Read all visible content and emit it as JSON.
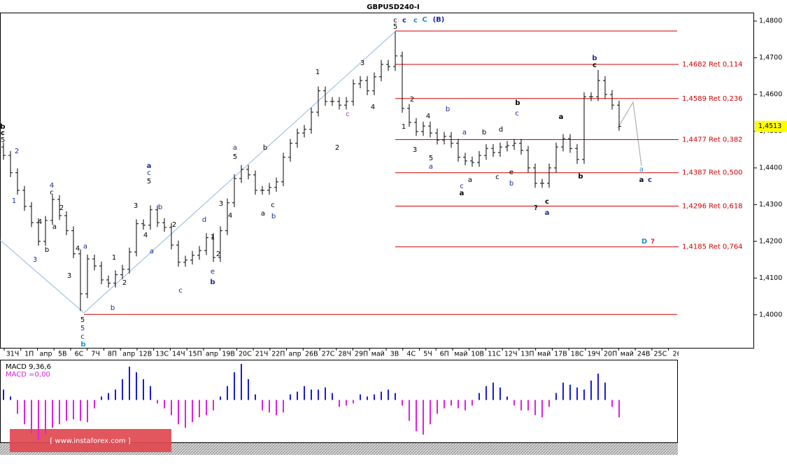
{
  "chart_data": {
    "type": "ohlc",
    "title": "GBPUSD240-I",
    "color": "#000000",
    "open": [
      1.4457,
      1.4434,
      1.4387,
      1.4339,
      1.4295,
      1.4251,
      1.42,
      1.4257,
      1.4314,
      1.427,
      1.4229,
      1.4166,
      1.4057,
      1.4152,
      1.4133,
      1.4095,
      1.4086,
      1.4109,
      1.4124,
      1.4171,
      1.4248,
      1.4244,
      1.4286,
      1.4251,
      1.4238,
      1.419,
      1.4143,
      1.4149,
      1.4162,
      1.4175,
      1.421,
      1.4156,
      1.4229,
      1.4305,
      1.4371,
      1.4396,
      1.4381,
      1.4339,
      1.4339,
      1.4347,
      1.4362,
      1.4429,
      1.4467,
      1.4495,
      1.4505,
      1.4552,
      1.461,
      1.4581,
      1.4581,
      1.4571,
      1.4581,
      1.4629,
      1.4638,
      1.461,
      1.4648,
      1.4682,
      1.4676,
      1.4705,
      1.4562,
      1.4524,
      1.4499,
      1.4514,
      1.4495,
      1.4476,
      1.4486,
      1.4467,
      1.4429,
      1.4419,
      1.4415,
      1.4434,
      1.4453,
      1.4442,
      1.4457,
      1.4461,
      1.4467,
      1.4448,
      1.44,
      1.4358,
      1.4358,
      1.44,
      1.4457,
      1.448,
      1.4453,
      1.4423,
      1.4594,
      1.4594,
      1.4638,
      1.46,
      1.4571
    ],
    "high": [
      1.4469,
      1.4446,
      1.4399,
      1.4351,
      1.4307,
      1.4263,
      1.4269,
      1.4326,
      1.4326,
      1.4282,
      1.4241,
      1.4178,
      1.4164,
      1.4164,
      1.4145,
      1.4107,
      1.4121,
      1.4136,
      1.4183,
      1.426,
      1.426,
      1.4298,
      1.4298,
      1.4263,
      1.425,
      1.4202,
      1.4161,
      1.4174,
      1.4187,
      1.4222,
      1.4222,
      1.4241,
      1.4317,
      1.4383,
      1.4408,
      1.4408,
      1.4393,
      1.4351,
      1.4359,
      1.4374,
      1.4441,
      1.4479,
      1.4507,
      1.4517,
      1.4564,
      1.4622,
      1.4622,
      1.4593,
      1.4593,
      1.4593,
      1.4641,
      1.465,
      1.465,
      1.466,
      1.4694,
      1.4694,
      1.4771,
      1.4717,
      1.4574,
      1.4536,
      1.4526,
      1.4526,
      1.4507,
      1.4498,
      1.4498,
      1.4479,
      1.4441,
      1.4431,
      1.4446,
      1.4465,
      1.4465,
      1.4469,
      1.4473,
      1.4479,
      1.4479,
      1.446,
      1.4412,
      1.437,
      1.4412,
      1.4469,
      1.4492,
      1.4492,
      1.4465,
      1.4606,
      1.4606,
      1.4667,
      1.465,
      1.4612,
      1.4583
    ],
    "low": [
      1.4422,
      1.4375,
      1.4327,
      1.4283,
      1.4239,
      1.4188,
      1.4188,
      1.4245,
      1.4258,
      1.4217,
      1.4154,
      1.401,
      1.4045,
      1.4121,
      1.4083,
      1.4074,
      1.4074,
      1.4097,
      1.4112,
      1.4159,
      1.4232,
      1.4232,
      1.4239,
      1.4226,
      1.4178,
      1.4131,
      1.4131,
      1.4137,
      1.415,
      1.4163,
      1.4144,
      1.4144,
      1.4217,
      1.4293,
      1.4359,
      1.4369,
      1.4327,
      1.4327,
      1.4327,
      1.4335,
      1.435,
      1.4417,
      1.4455,
      1.4483,
      1.4493,
      1.454,
      1.4569,
      1.4569,
      1.4559,
      1.4559,
      1.4569,
      1.4617,
      1.4598,
      1.4598,
      1.4636,
      1.4664,
      1.4664,
      1.455,
      1.4512,
      1.4487,
      1.4487,
      1.4483,
      1.4464,
      1.4464,
      1.4455,
      1.4417,
      1.4407,
      1.4403,
      1.4403,
      1.4422,
      1.443,
      1.443,
      1.4445,
      1.4449,
      1.4436,
      1.4388,
      1.4346,
      1.4346,
      1.4346,
      1.4388,
      1.4445,
      1.4441,
      1.4411,
      1.4411,
      1.4582,
      1.4582,
      1.4588,
      1.4559,
      1.4501
    ],
    "close": [
      1.4434,
      1.4387,
      1.4339,
      1.4295,
      1.4251,
      1.42,
      1.4257,
      1.4314,
      1.427,
      1.4229,
      1.4166,
      1.4057,
      1.4152,
      1.4133,
      1.4095,
      1.4086,
      1.4109,
      1.4124,
      1.4171,
      1.4248,
      1.4244,
      1.4286,
      1.4251,
      1.4238,
      1.419,
      1.4143,
      1.4149,
      1.4162,
      1.4175,
      1.421,
      1.4156,
      1.4229,
      1.4305,
      1.4371,
      1.4396,
      1.4381,
      1.4339,
      1.4339,
      1.4347,
      1.4362,
      1.4429,
      1.4467,
      1.4495,
      1.4505,
      1.4552,
      1.461,
      1.4581,
      1.4581,
      1.4571,
      1.4581,
      1.4629,
      1.4638,
      1.461,
      1.4648,
      1.4682,
      1.4676,
      1.4705,
      1.4562,
      1.4524,
      1.4499,
      1.4514,
      1.4495,
      1.4476,
      1.4486,
      1.4467,
      1.4429,
      1.4419,
      1.4415,
      1.4434,
      1.4453,
      1.4442,
      1.4457,
      1.4461,
      1.4467,
      1.4448,
      1.44,
      1.4358,
      1.4358,
      1.44,
      1.4457,
      1.448,
      1.4453,
      1.4423,
      1.4594,
      1.4594,
      1.4638,
      1.46,
      1.4571,
      1.4513
    ],
    "ylim": [
      1.391,
      1.4823
    ],
    "yticks": [
      {
        "value": 1.4,
        "label": "1,4000"
      },
      {
        "value": 1.41,
        "label": "1,4100"
      },
      {
        "value": 1.42,
        "label": "1,4200"
      },
      {
        "value": 1.43,
        "label": "1,4300"
      },
      {
        "value": 1.44,
        "label": "1,4400"
      },
      {
        "value": 1.45,
        "label": "1,4500"
      },
      {
        "value": 1.46,
        "label": "1,4600"
      },
      {
        "value": 1.47,
        "label": "1,4700"
      },
      {
        "value": 1.48,
        "label": "1,4800"
      }
    ],
    "last_price": {
      "value": 1.4513,
      "label": "1,4513"
    },
    "x_labels": [
      "31Ч",
      "1П",
      "апр",
      "5В",
      "6С",
      "7Ч",
      "8П",
      "апр",
      "12В",
      "13С",
      "14Ч",
      "15П",
      "апр",
      "19В",
      "20С",
      "21Ч",
      "22П",
      "апр",
      "26В",
      "27С",
      "28Ч",
      "29П",
      "май",
      "3В",
      "4С",
      "5Ч",
      "6П",
      "май",
      "10В",
      "11С",
      "12Ч",
      "13П",
      "май",
      "17В",
      "18С",
      "19Ч",
      "20П",
      "май",
      "24В",
      "25С",
      "26"
    ],
    "level_color": "#d00000",
    "levels": [
      {
        "value": 1.4682,
        "label": "1,4682 Ret 0,114"
      },
      {
        "value": 1.4589,
        "label": "1,4589 Ret 0,236"
      },
      {
        "value": 1.4477,
        "label": "1,4477 Ret 0,382"
      },
      {
        "value": 1.4387,
        "label": "1,4387 Ret 0,500"
      },
      {
        "value": 1.4296,
        "label": "1,4296 Ret 0,618"
      },
      {
        "value": 1.4185,
        "label": "1,4185 Ret 0,764"
      }
    ],
    "lines": [
      1.4773,
      1.4001
    ],
    "annotations": [
      {
        "text": "b",
        "color": "#000000",
        "bold": true
      },
      {
        "text": "c",
        "color": "#000000",
        "bold": true
      },
      {
        "text": "5",
        "color": "#000000"
      },
      {
        "text": "2",
        "color": "#1a2a9c"
      },
      {
        "text": "1",
        "color": "#1a2a9c"
      },
      {
        "text": "3",
        "color": "#1a2a9c"
      },
      {
        "text": "4",
        "color": "#1a2a9c"
      },
      {
        "text": "c",
        "color": "#000000"
      },
      {
        "text": "2",
        "color": "#000000"
      },
      {
        "text": "4",
        "color": "#000000"
      },
      {
        "text": "a",
        "color": "#000000"
      },
      {
        "text": "b",
        "color": "#000000"
      },
      {
        "text": "3",
        "color": "#000000"
      },
      {
        "text": "4",
        "color": "#000000"
      },
      {
        "text": "a",
        "color": "#1a2a9c"
      },
      {
        "text": "1",
        "color": "#000000"
      },
      {
        "text": "2",
        "color": "#000000"
      },
      {
        "text": "b",
        "color": "#1a2a9c"
      },
      {
        "text": "5",
        "color": "#000000"
      },
      {
        "text": "5",
        "color": "#1a2a9c"
      },
      {
        "text": "c",
        "color": "#1a2a9c"
      },
      {
        "text": "b",
        "color": "#1e8fd0",
        "bold": true
      },
      {
        "text": "a",
        "color": "#1a2a9c",
        "bold": true
      },
      {
        "text": "c",
        "color": "#1a2a9c"
      },
      {
        "text": "5",
        "color": "#000000"
      },
      {
        "text": "3",
        "color": "#000000"
      },
      {
        "text": "b",
        "color": "#1a2a9c"
      },
      {
        "text": "4",
        "color": "#000000"
      },
      {
        "text": "2",
        "color": "#000000"
      },
      {
        "text": "a",
        "color": "#1a2a9c"
      },
      {
        "text": "c",
        "color": "#1a2a9c"
      },
      {
        "text": "d",
        "color": "#1a2a9c"
      },
      {
        "text": "1",
        "color": "#000000"
      },
      {
        "text": "2",
        "color": "#000000"
      },
      {
        "text": "3",
        "color": "#000000"
      },
      {
        "text": "4",
        "color": "#000000"
      },
      {
        "text": "e",
        "color": "#1a2a9c"
      },
      {
        "text": "b",
        "color": "#1a2a9c",
        "bold": true
      },
      {
        "text": "a",
        "color": "#1a2a9c"
      },
      {
        "text": "5",
        "color": "#000000"
      },
      {
        "text": "b",
        "color": "#000000"
      },
      {
        "text": "a",
        "color": "#000000"
      },
      {
        "text": "c",
        "color": "#000000"
      },
      {
        "text": "b",
        "color": "#1a2a9c"
      },
      {
        "text": "1",
        "color": "#000000"
      },
      {
        "text": "2",
        "color": "#000000"
      },
      {
        "text": "3",
        "color": "#000000"
      },
      {
        "text": "4",
        "color": "#000000"
      },
      {
        "text": "c",
        "color": "#a040c0"
      },
      {
        "text": "c",
        "color": "#000000"
      },
      {
        "text": "5",
        "color": "#000000"
      },
      {
        "text": "c",
        "color": "#1a2a9c",
        "bold": true
      },
      {
        "text": "c",
        "color": "#1e8fd0",
        "bold": true
      },
      {
        "text": "C",
        "color": "#1e8fd0",
        "bold": true
      },
      {
        "text": "(B)",
        "color": "#1a2a9c",
        "bold": true
      },
      {
        "text": "2",
        "color": "#000000"
      },
      {
        "text": "1",
        "color": "#000000"
      },
      {
        "text": "4",
        "color": "#000000"
      },
      {
        "text": "3",
        "color": "#000000"
      },
      {
        "text": "5",
        "color": "#000000"
      },
      {
        "text": "a",
        "color": "#1a2a9c"
      },
      {
        "text": "b",
        "color": "#1a2a9c"
      },
      {
        "text": "a",
        "color": "#1a2a9c"
      },
      {
        "text": "b",
        "color": "#000000"
      },
      {
        "text": "d",
        "color": "#000000"
      },
      {
        "text": "c",
        "color": "#1a2a9c"
      },
      {
        "text": "b",
        "color": "#000000",
        "bold": true
      },
      {
        "text": "c",
        "color": "#1a2a9c"
      },
      {
        "text": "a",
        "color": "#000000",
        "bold": true
      },
      {
        "text": "a",
        "color": "#000000"
      },
      {
        "text": "c",
        "color": "#000000"
      },
      {
        "text": "e",
        "color": "#000000"
      },
      {
        "text": "b",
        "color": "#1a2a9c"
      },
      {
        "text": "a",
        "color": "#000000",
        "bold": true
      },
      {
        "text": "b",
        "color": "#000000",
        "bold": true
      },
      {
        "text": "c",
        "color": "#000000",
        "bold": true
      },
      {
        "text": "?",
        "color": "#000000",
        "bold": true
      },
      {
        "text": "a",
        "color": "#1a2a9c",
        "bold": true
      },
      {
        "text": "b",
        "color": "#1a2a9c",
        "bold": true
      },
      {
        "text": "c",
        "color": "#000000",
        "bold": true
      },
      {
        "text": "a",
        "color": "#1e8fd0"
      },
      {
        "text": "a",
        "color": "#000000",
        "bold": true
      },
      {
        "text": "c",
        "color": "#1a2a9c",
        "bold": true
      },
      {
        "text": "D",
        "color": "#1e8fd0",
        "bold": true
      },
      {
        "text": "?",
        "color": "#e0204a",
        "bold": true
      }
    ],
    "macd": {
      "label": "MACD 9,36,6",
      "value_label": "MACD =0,00",
      "pos_color": "#1a1adc",
      "neg_color": "#e020e0",
      "ylim": [
        -0.0061,
        0.0057
      ],
      "values": [
        0.0015,
        0.0005,
        -0.002,
        -0.0035,
        -0.0048,
        -0.0058,
        -0.005,
        -0.004,
        -0.0035,
        -0.003,
        -0.0028,
        -0.003,
        -0.0032,
        -0.0012,
        0.0005,
        0.001,
        0.0015,
        0.003,
        0.0048,
        0.004,
        0.003,
        0.002,
        -0.0005,
        -0.0012,
        -0.0022,
        -0.0035,
        -0.004,
        -0.0032,
        -0.0025,
        -0.0022,
        -0.0015,
        0.0005,
        0.002,
        0.004,
        0.0052,
        0.003,
        0.0008,
        -0.0015,
        -0.0018,
        -0.0022,
        -0.0018,
        0.0008,
        0.0012,
        0.002,
        0.0015,
        0.0015,
        0.0018,
        0.001,
        -0.001,
        -0.0008,
        -0.0005,
        0.0008,
        0.0005,
        0.0008,
        0.0012,
        0.0015,
        0.001,
        -0.0008,
        -0.003,
        -0.0045,
        -0.005,
        -0.0035,
        -0.002,
        -0.0012,
        -0.0008,
        -0.0012,
        -0.0015,
        -0.0008,
        0.001,
        0.002,
        0.0025,
        0.0018,
        0.0005,
        -0.0008,
        -0.0015,
        -0.0015,
        -0.0022,
        -0.0025,
        -0.001,
        0.001,
        0.0025,
        0.0022,
        0.0018,
        0.0015,
        0.0028,
        0.0038,
        0.0025,
        -0.001,
        -0.0025
      ]
    },
    "watermark": "[ www.instaforex.com ]"
  }
}
